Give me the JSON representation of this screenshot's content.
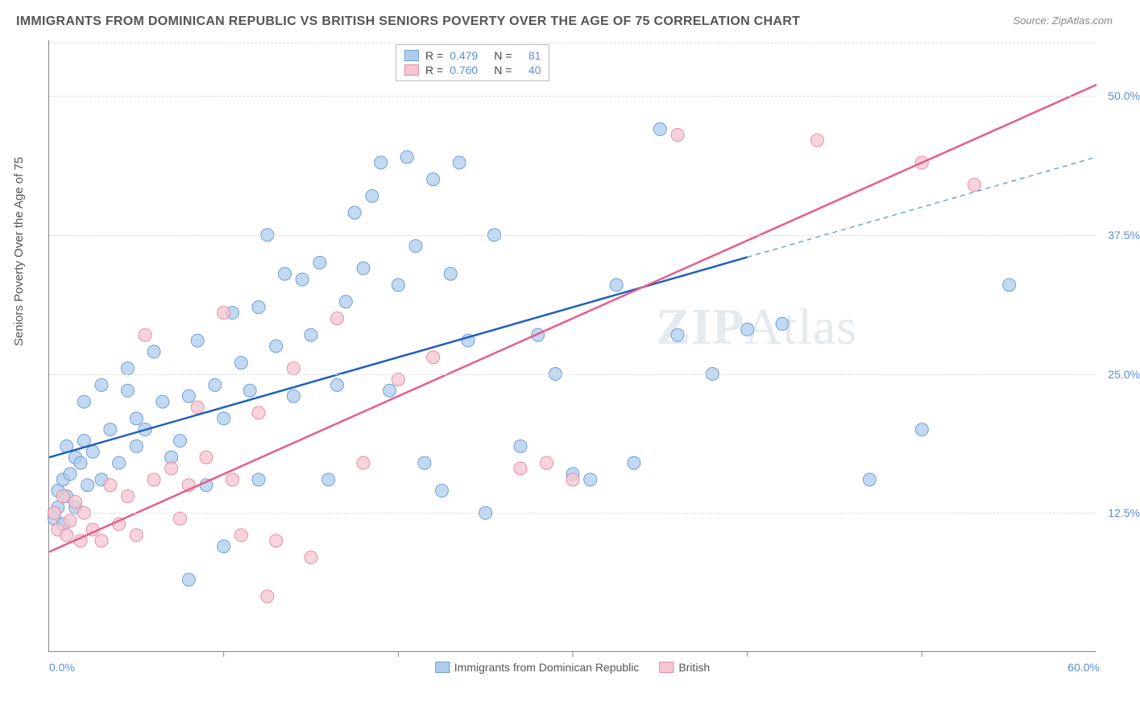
{
  "title": "IMMIGRANTS FROM DOMINICAN REPUBLIC VS BRITISH SENIORS POVERTY OVER THE AGE OF 75 CORRELATION CHART",
  "source": "Source: ZipAtlas.com",
  "ylabel": "Seniors Poverty Over the Age of 75",
  "watermark_bold": "ZIP",
  "watermark_rest": "Atlas",
  "chart": {
    "type": "scatter",
    "xlim": [
      0,
      60
    ],
    "ylim": [
      0,
      55
    ],
    "y_ticks": [
      12.5,
      25.0,
      37.5,
      50.0
    ],
    "y_tick_labels": [
      "12.5%",
      "25.0%",
      "37.5%",
      "50.0%"
    ],
    "x_tick_left": "0.0%",
    "x_tick_right": "60.0%",
    "background_color": "#ffffff",
    "grid_color": "#dddddd",
    "axis_color": "#888888",
    "tick_font_color": "#5b8fd6",
    "series": [
      {
        "name": "Immigrants from Dominican Republic",
        "marker_fill": "#aeccec",
        "marker_stroke": "#6f9fd8",
        "line_color": "#1f5fbf",
        "dash_color": "#6f9fd8",
        "R": "0.479",
        "N": "81",
        "marker_radius": 8,
        "trend": {
          "x1": 0,
          "y1": 17.5,
          "x2": 40,
          "y2": 35.5
        },
        "trend_dash": {
          "x1": 40,
          "y1": 35.5,
          "x2": 60,
          "y2": 44.5
        },
        "points": [
          [
            0.5,
            14.5
          ],
          [
            0.8,
            15.5
          ],
          [
            0.5,
            13.0
          ],
          [
            0.3,
            12.0
          ],
          [
            0.8,
            11.5
          ],
          [
            1.0,
            14.0
          ],
          [
            1.2,
            16.0
          ],
          [
            1.5,
            17.5
          ],
          [
            1.0,
            18.5
          ],
          [
            1.8,
            17.0
          ],
          [
            2.0,
            19.0
          ],
          [
            1.5,
            13.0
          ],
          [
            2.2,
            15.0
          ],
          [
            2.5,
            18.0
          ],
          [
            2.0,
            22.5
          ],
          [
            3.0,
            24.0
          ],
          [
            3.5,
            20.0
          ],
          [
            4.0,
            17.0
          ],
          [
            3.0,
            15.5
          ],
          [
            4.5,
            23.5
          ],
          [
            5.0,
            21.0
          ],
          [
            5.0,
            18.5
          ],
          [
            4.5,
            25.5
          ],
          [
            6.0,
            27.0
          ],
          [
            5.5,
            20.0
          ],
          [
            6.5,
            22.5
          ],
          [
            7.0,
            17.5
          ],
          [
            7.5,
            19.0
          ],
          [
            8.0,
            23.0
          ],
          [
            8.0,
            6.5
          ],
          [
            8.5,
            28.0
          ],
          [
            9.0,
            15.0
          ],
          [
            9.5,
            24.0
          ],
          [
            10.0,
            21.0
          ],
          [
            10.5,
            30.5
          ],
          [
            10.0,
            9.5
          ],
          [
            11.0,
            26.0
          ],
          [
            11.5,
            23.5
          ],
          [
            12.0,
            31.0
          ],
          [
            12.5,
            37.5
          ],
          [
            12.0,
            15.5
          ],
          [
            13.0,
            27.5
          ],
          [
            13.5,
            34.0
          ],
          [
            14.0,
            23.0
          ],
          [
            14.5,
            33.5
          ],
          [
            15.0,
            28.5
          ],
          [
            15.5,
            35.0
          ],
          [
            16.0,
            15.5
          ],
          [
            16.5,
            24.0
          ],
          [
            17.0,
            31.5
          ],
          [
            17.5,
            39.5
          ],
          [
            18.0,
            34.5
          ],
          [
            18.5,
            41.0
          ],
          [
            19.0,
            44.0
          ],
          [
            19.5,
            23.5
          ],
          [
            20.0,
            33.0
          ],
          [
            20.5,
            44.5
          ],
          [
            21.0,
            36.5
          ],
          [
            21.5,
            17.0
          ],
          [
            22.0,
            42.5
          ],
          [
            22.5,
            14.5
          ],
          [
            23.0,
            34.0
          ],
          [
            23.5,
            44.0
          ],
          [
            24.0,
            28.0
          ],
          [
            25.0,
            12.5
          ],
          [
            25.5,
            37.5
          ],
          [
            27.0,
            18.5
          ],
          [
            28.0,
            28.5
          ],
          [
            29.0,
            25.0
          ],
          [
            30.0,
            16.0
          ],
          [
            31.0,
            15.5
          ],
          [
            32.5,
            33.0
          ],
          [
            33.5,
            17.0
          ],
          [
            35.0,
            47.0
          ],
          [
            36.0,
            28.5
          ],
          [
            38.0,
            25.0
          ],
          [
            40.0,
            29.0
          ],
          [
            42.0,
            29.5
          ],
          [
            47.0,
            15.5
          ],
          [
            50.0,
            20.0
          ],
          [
            55.0,
            33.0
          ]
        ]
      },
      {
        "name": "British",
        "marker_fill": "#f4c6d0",
        "marker_stroke": "#e88ba4",
        "line_color": "#e85c8a",
        "R": "0.760",
        "N": "40",
        "marker_radius": 8,
        "trend": {
          "x1": 0,
          "y1": 9.0,
          "x2": 60,
          "y2": 51.0
        },
        "points": [
          [
            0.5,
            11.0
          ],
          [
            0.3,
            12.5
          ],
          [
            1.0,
            10.5
          ],
          [
            1.2,
            11.8
          ],
          [
            1.8,
            10.0
          ],
          [
            0.8,
            14.0
          ],
          [
            2.0,
            12.5
          ],
          [
            1.5,
            13.5
          ],
          [
            2.5,
            11.0
          ],
          [
            3.0,
            10.0
          ],
          [
            3.5,
            15.0
          ],
          [
            4.0,
            11.5
          ],
          [
            4.5,
            14.0
          ],
          [
            5.0,
            10.5
          ],
          [
            5.5,
            28.5
          ],
          [
            6.0,
            15.5
          ],
          [
            7.0,
            16.5
          ],
          [
            7.5,
            12.0
          ],
          [
            8.0,
            15.0
          ],
          [
            8.5,
            22.0
          ],
          [
            9.0,
            17.5
          ],
          [
            10.0,
            30.5
          ],
          [
            10.5,
            15.5
          ],
          [
            11.0,
            10.5
          ],
          [
            12.0,
            21.5
          ],
          [
            12.5,
            5.0
          ],
          [
            13.0,
            10.0
          ],
          [
            14.0,
            25.5
          ],
          [
            15.0,
            8.5
          ],
          [
            16.5,
            30.0
          ],
          [
            18.0,
            17.0
          ],
          [
            20.0,
            24.5
          ],
          [
            22.0,
            26.5
          ],
          [
            27.0,
            16.5
          ],
          [
            28.5,
            17.0
          ],
          [
            30.0,
            15.5
          ],
          [
            36.0,
            46.5
          ],
          [
            44.0,
            46.0
          ],
          [
            50.0,
            44.0
          ],
          [
            53.0,
            42.0
          ]
        ]
      }
    ],
    "legend_top": [
      {
        "swatch_fill": "#aeccec",
        "swatch_stroke": "#6f9fd8",
        "R": "0.479",
        "N": "81"
      },
      {
        "swatch_fill": "#f4c6d0",
        "swatch_stroke": "#e88ba4",
        "R": "0.760",
        "N": "40"
      }
    ],
    "legend_bottom": [
      {
        "swatch_fill": "#aeccec",
        "swatch_stroke": "#6f9fd8",
        "label": "Immigrants from Dominican Republic"
      },
      {
        "swatch_fill": "#f4c6d0",
        "swatch_stroke": "#e88ba4",
        "label": "British"
      }
    ],
    "title_fontsize": 16,
    "label_fontsize": 15,
    "tick_fontsize": 14
  }
}
